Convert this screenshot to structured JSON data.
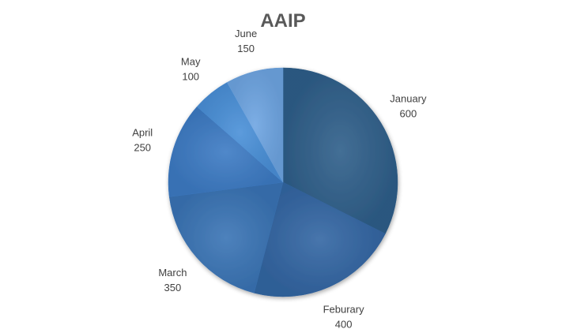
{
  "chart_data": {
    "type": "pie",
    "title": "AAIP",
    "start_angle_deg": 0,
    "direction": "clockwise",
    "legend": "none",
    "data_labels": "outside",
    "slices": [
      {
        "label": "January",
        "value": 600,
        "color": "#2F5F8A"
      },
      {
        "label": "Feburary",
        "value": 400,
        "color": "#3366A3"
      },
      {
        "label": "March",
        "value": 350,
        "color": "#3A74B5"
      },
      {
        "label": "April",
        "value": 250,
        "color": "#3D7BC4"
      },
      {
        "label": "May",
        "value": 100,
        "color": "#4A90D8"
      },
      {
        "label": "June",
        "value": 150,
        "color": "#6EA5E2"
      }
    ]
  }
}
